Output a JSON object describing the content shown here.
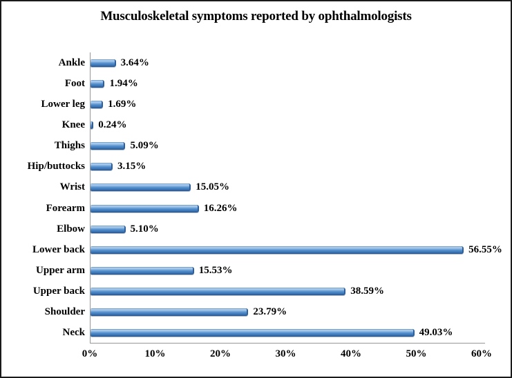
{
  "chart_data": {
    "type": "bar",
    "orientation": "horizontal",
    "title": "Musculoskeletal symptoms reported by ophthalmologists",
    "categories": [
      "Ankle",
      "Foot",
      "Lower leg",
      "Knee",
      "Thighs",
      "Hip/buttocks",
      "Wrist",
      "Forearm",
      "Elbow",
      "Lower back",
      "Upper arm",
      "Upper back",
      "Shoulder",
      "Neck"
    ],
    "values": [
      3.64,
      1.94,
      1.69,
      0.24,
      5.09,
      3.15,
      15.05,
      16.26,
      5.1,
      56.55,
      15.53,
      38.59,
      23.79,
      49.03
    ],
    "value_labels": [
      "3.64%",
      "1.94%",
      "1.69%",
      "0.24%",
      "5.09%",
      "3.15%",
      "15.05%",
      "16.26%",
      "5.10%",
      "56.55%",
      "15.53%",
      "38.59%",
      "23.79%",
      "49.03%"
    ],
    "xticks": [
      "0%",
      "10%",
      "20%",
      "30%",
      "40%",
      "50%",
      "60%"
    ],
    "xlim": [
      0,
      60
    ],
    "xlabel": "",
    "ylabel": "",
    "grid": false,
    "legend": null,
    "layout": {
      "bar_color": "#4f8bc9",
      "bar_gradient_top": "#b7d3ee",
      "bar_gradient_bottom": "#27548c",
      "axis_color": "#969696",
      "text_color": "#000000",
      "frame_color": "#1a1a1a",
      "background": "#ffffff"
    }
  }
}
